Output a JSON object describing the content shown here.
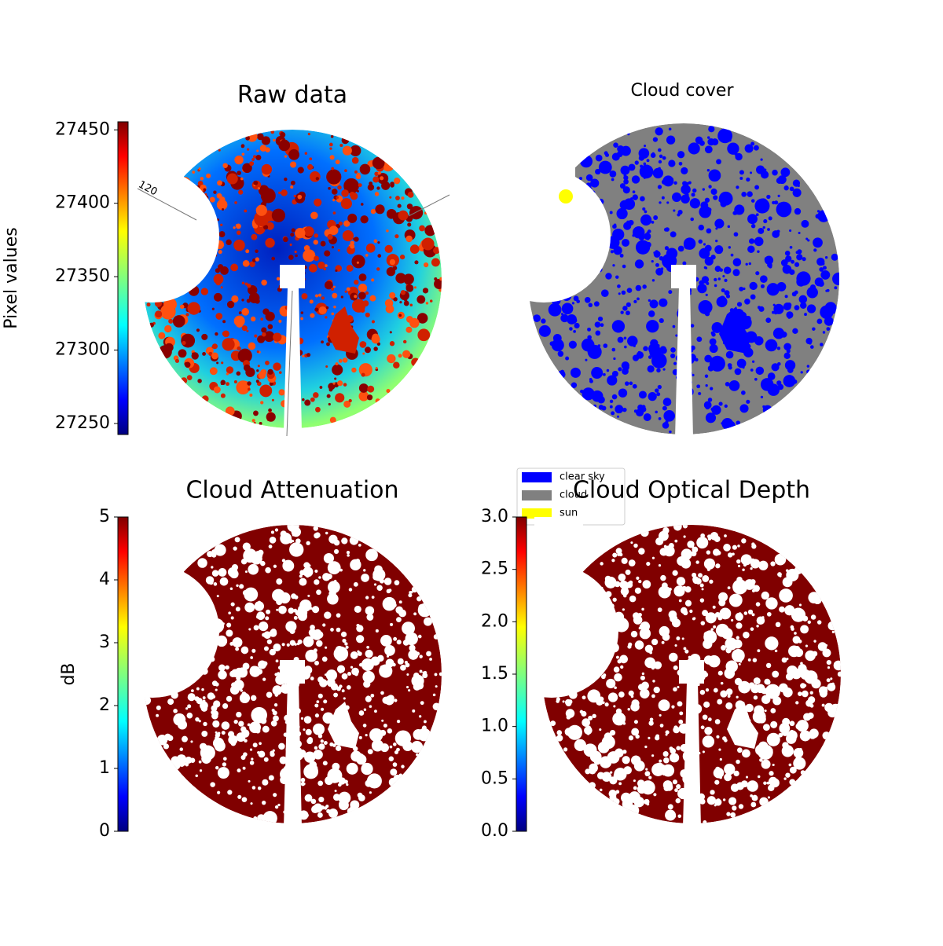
{
  "chart_data": [
    {
      "type": "image",
      "title": "Raw data",
      "colormap": "jet",
      "ylabel": "Pixel values",
      "ylim": [
        27242.5,
        27455.5
      ],
      "yticks": [
        27250,
        27300,
        27350,
        27400,
        27450
      ],
      "annotations": [
        "120"
      ]
    },
    {
      "type": "image",
      "title": "Cloud cover",
      "legend": [
        {
          "name": "clear sky",
          "color": "#0000ff"
        },
        {
          "name": "cloud",
          "color": "#808080"
        },
        {
          "name": "sun",
          "color": "#ffff00"
        }
      ]
    },
    {
      "type": "image",
      "title": "Cloud Attenuation",
      "colormap": "jet",
      "ylabel": "dB",
      "ylim": [
        0,
        5
      ],
      "yticks": [
        0,
        1,
        2,
        3,
        4,
        5
      ]
    },
    {
      "type": "image",
      "title": "Cloud Optical Depth",
      "colormap": "jet",
      "ylim": [
        0,
        3
      ],
      "yticks": [
        {
          "value": 0,
          "label": "0.0"
        },
        {
          "value": 0.5,
          "label": "0.5"
        },
        {
          "value": 1,
          "label": "1.0"
        },
        {
          "value": 1.5,
          "label": "1.5"
        },
        {
          "value": 2,
          "label": "2.0"
        },
        {
          "value": 2.5,
          "label": "2.5"
        },
        {
          "value": 3,
          "label": "3.0"
        }
      ]
    }
  ]
}
